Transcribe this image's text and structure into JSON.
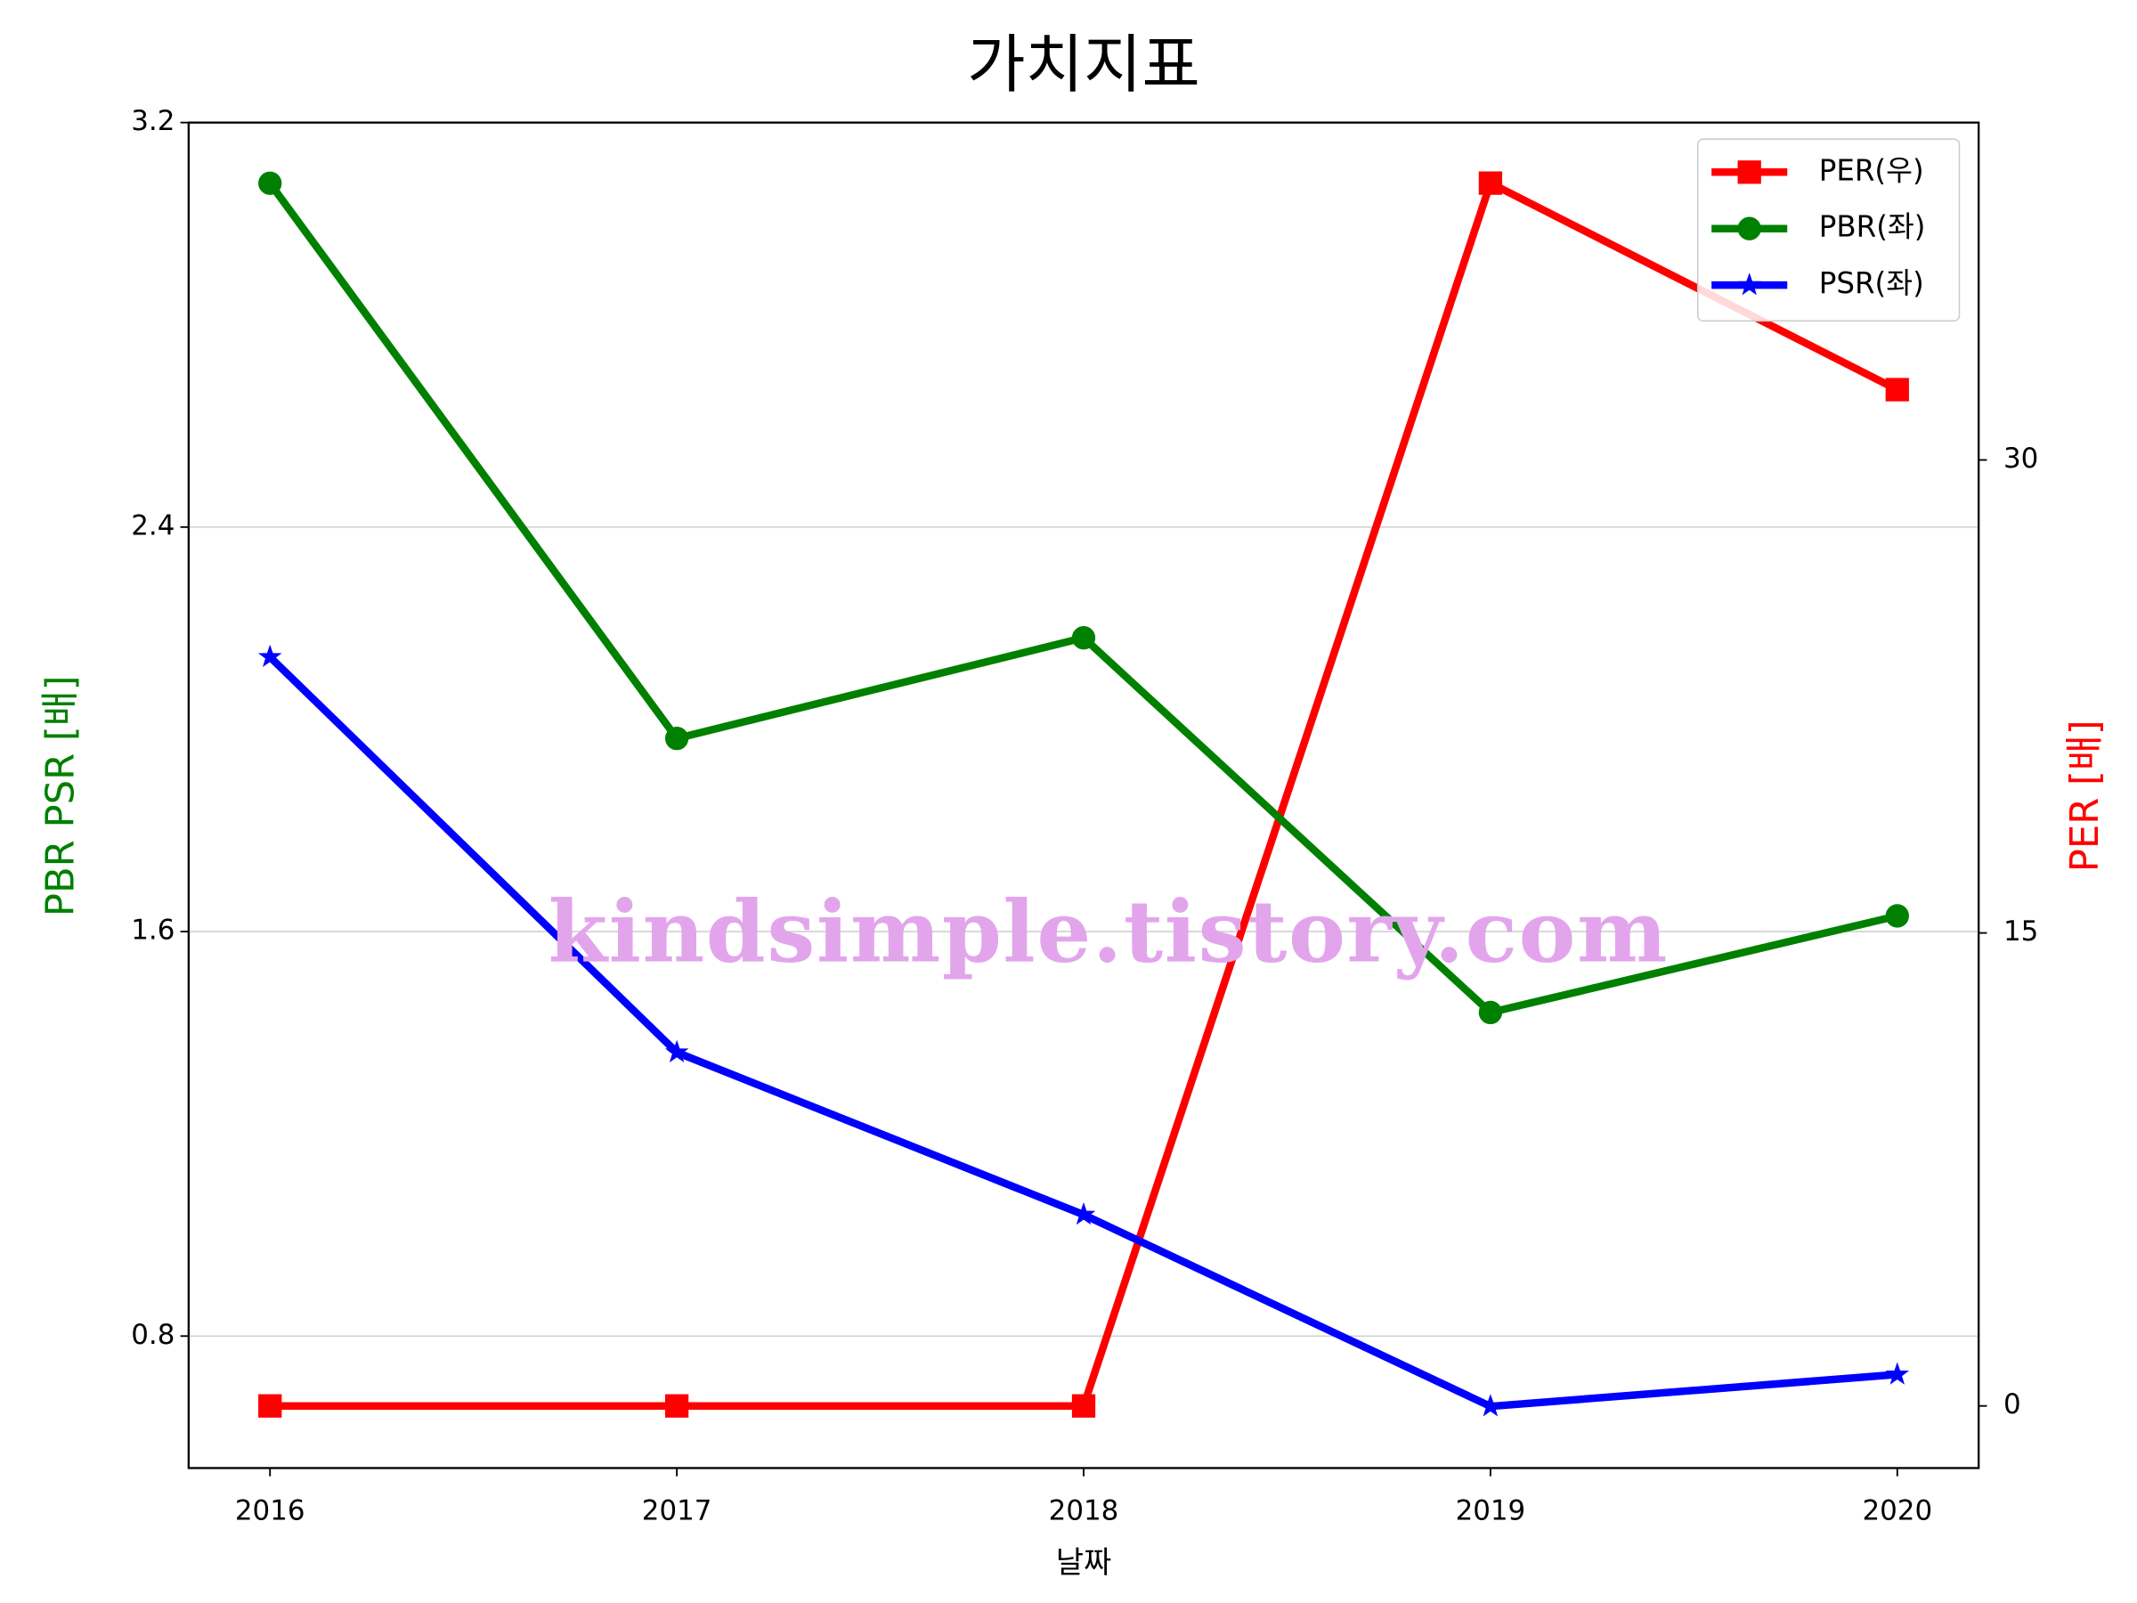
{
  "chart_data": {
    "type": "line",
    "title": "가치지표",
    "xlabel": "날짜",
    "ylabel": "PBR PSR [배]",
    "y2label": "PER [배]",
    "annotation": "kindsimple.tistory.com",
    "x": [
      2016,
      2017,
      2018,
      2019,
      2020
    ],
    "xlim": [
      2015.8,
      2020.2
    ],
    "xticks": [
      2016,
      2017,
      2018,
      2019,
      2020
    ],
    "ylim": [
      0.539,
      3.2
    ],
    "yticks": [
      0.8,
      1.6,
      2.4,
      3.2
    ],
    "y2lim": [
      -1.97,
      40.7
    ],
    "y2ticks": [
      0,
      15,
      30
    ],
    "grid": true,
    "legend": "upper right",
    "series": [
      {
        "name": "PER(우)",
        "color": "#ff0000",
        "marker": "square",
        "axis": "y2",
        "values": [
          0,
          0,
          0,
          38.78,
          32.23
        ]
      },
      {
        "name": "PBR(좌)",
        "color": "#008000",
        "marker": "circle",
        "values": [
          3.08,
          1.982,
          2.181,
          1.44,
          1.631
        ]
      },
      {
        "name": "PSR(좌)",
        "color": "#0000ff",
        "marker": "star",
        "values": [
          2.143,
          1.361,
          1.04,
          0.661,
          0.724
        ]
      }
    ]
  }
}
